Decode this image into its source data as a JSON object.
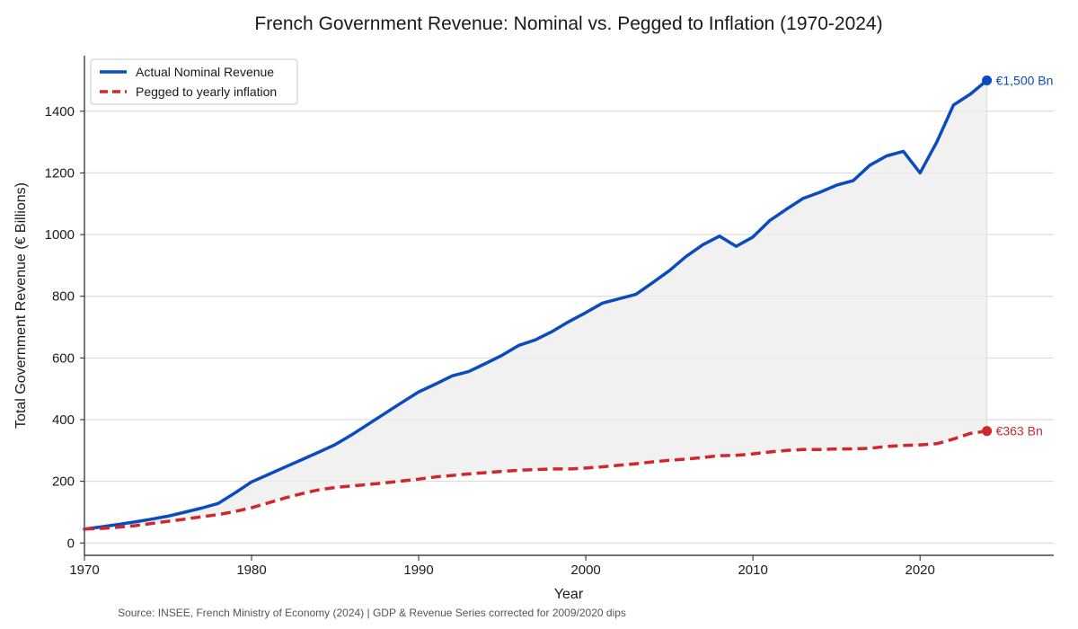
{
  "colors": {
    "nominal": "#0a4bbf",
    "inflation": "#d0272c",
    "fill": "#ececec",
    "grid": "#d6d6d6",
    "axis": "#222222"
  },
  "chart_data": {
    "type": "line",
    "title": "French Government Revenue: Nominal vs. Pegged to Inflation (1970-2024)",
    "xlabel": "Year",
    "ylabel": "Total Government Revenue (€ Billions)",
    "xlim": [
      1970,
      2028
    ],
    "ylim": [
      -40,
      1580
    ],
    "xticks": [
      1970,
      1980,
      1990,
      2000,
      2010,
      2020
    ],
    "yticks": [
      0,
      200,
      400,
      600,
      800,
      1000,
      1200,
      1400
    ],
    "grid": true,
    "legend_position": "top-left",
    "source": "Source: INSEE, French Ministry of Economy (2024) | GDP & Revenue Series corrected for 2009/2020 dips",
    "series": [
      {
        "name": "Actual Nominal Revenue",
        "style": "solid",
        "x": [
          1970,
          1971,
          1972,
          1973,
          1974,
          1975,
          1976,
          1977,
          1978,
          1979,
          1980,
          1981,
          1982,
          1983,
          1984,
          1985,
          1986,
          1987,
          1988,
          1989,
          1990,
          1991,
          1992,
          1993,
          1994,
          1995,
          1996,
          1997,
          1998,
          1999,
          2000,
          2001,
          2002,
          2003,
          2004,
          2005,
          2006,
          2007,
          2008,
          2009,
          2010,
          2011,
          2012,
          2013,
          2014,
          2015,
          2016,
          2017,
          2018,
          2019,
          2020,
          2021,
          2022,
          2023,
          2024
        ],
        "values": [
          45,
          52,
          60,
          68,
          77,
          87,
          100,
          113,
          128,
          162,
          198,
          222,
          246,
          270,
          294,
          319,
          351,
          386,
          421,
          456,
          490,
          515,
          542,
          556,
          582,
          609,
          641,
          659,
          686,
          718,
          747,
          778,
          792,
          806,
          844,
          883,
          929,
          967,
          995,
          962,
          992,
          1045,
          1082,
          1117,
          1137,
          1160,
          1175,
          1225,
          1255,
          1270,
          1200,
          1300,
          1420,
          1455,
          1500
        ],
        "end_label": "€1,500 Bn"
      },
      {
        "name": "Pegged to yearly inflation",
        "style": "dashed",
        "x": [
          1970,
          1971,
          1972,
          1973,
          1974,
          1975,
          1976,
          1977,
          1978,
          1979,
          1980,
          1981,
          1982,
          1983,
          1984,
          1985,
          1986,
          1987,
          1988,
          1989,
          1990,
          1991,
          1992,
          1993,
          1994,
          1995,
          1996,
          1997,
          1998,
          1999,
          2000,
          2001,
          2002,
          2003,
          2004,
          2005,
          2006,
          2007,
          2008,
          2009,
          2010,
          2011,
          2012,
          2013,
          2014,
          2015,
          2016,
          2017,
          2018,
          2019,
          2020,
          2021,
          2022,
          2023,
          2024
        ],
        "values": [
          45,
          47,
          51,
          56,
          63,
          70,
          77,
          85,
          92,
          102,
          114,
          130,
          146,
          160,
          172,
          180,
          185,
          190,
          195,
          201,
          207,
          214,
          219,
          224,
          228,
          232,
          236,
          238,
          240,
          240,
          243,
          247,
          252,
          257,
          263,
          268,
          272,
          277,
          283,
          284,
          289,
          295,
          300,
          303,
          303,
          305,
          305,
          307,
          313,
          316,
          318,
          322,
          337,
          355,
          363
        ],
        "end_label": "€363 Bn"
      }
    ]
  }
}
